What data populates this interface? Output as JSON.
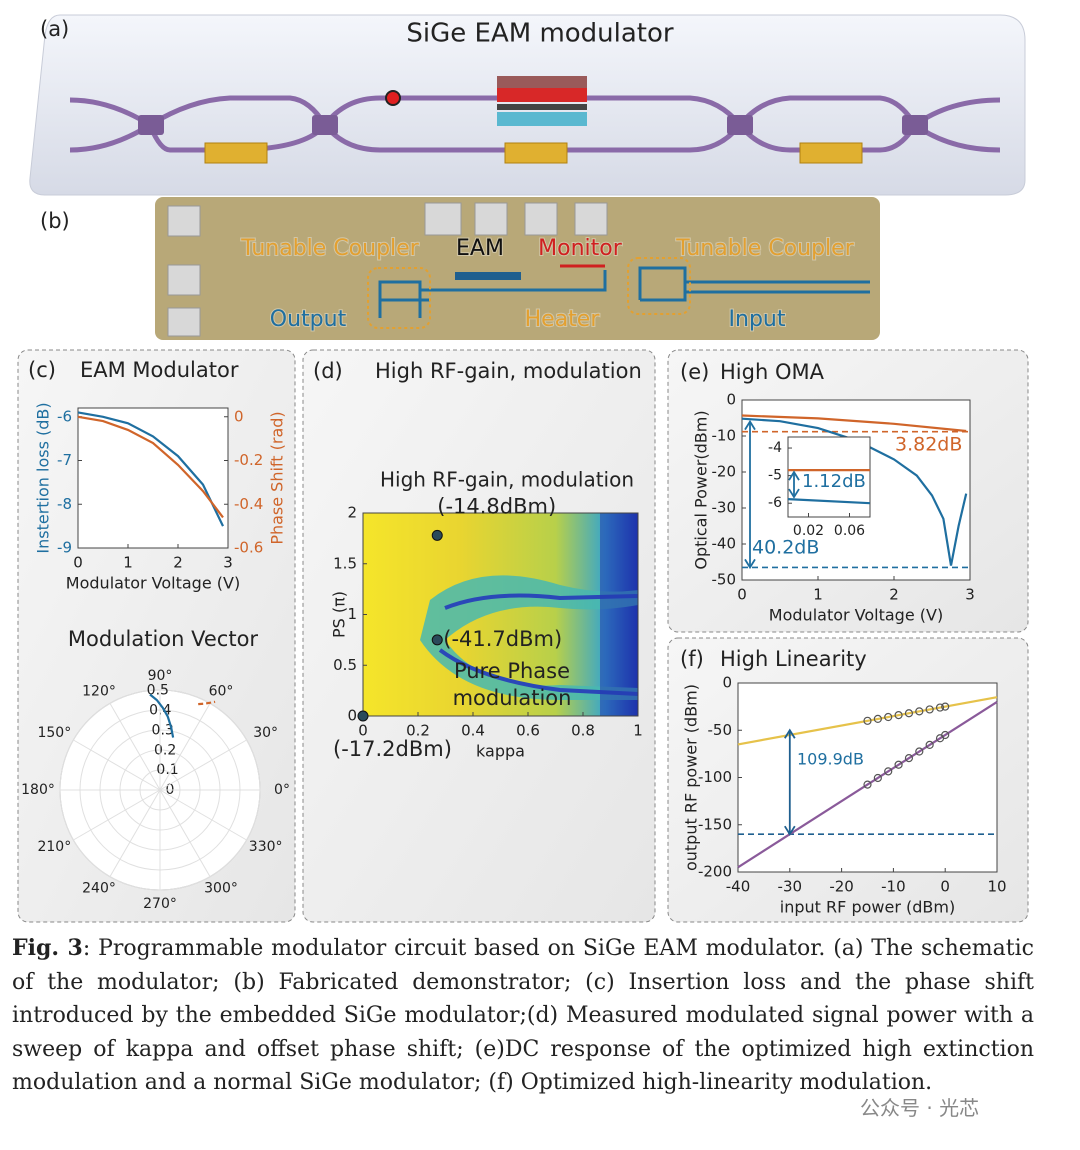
{
  "panel_a": {
    "label": "(a)",
    "title": "SiGe EAM modulator"
  },
  "panel_b": {
    "label": "(b)",
    "labels": [
      "Tunable Coupler",
      "EAM",
      "Monitor",
      "Tunable Coupler",
      "Output",
      "Heater",
      "Input"
    ]
  },
  "chart_data": [
    {
      "type": "line",
      "label": "(c)",
      "title": "EAM Modulator",
      "xlabel": "Modulator Voltage (V)",
      "ylabel": "Instertion loss (dB)",
      "y2label": "Phase Shift (rad)",
      "ycolor": "#1f6fa0",
      "y2color": "#d0652a",
      "x": [
        0,
        0.5,
        1,
        1.5,
        2,
        2.5,
        2.9
      ],
      "xlim": [
        0,
        3
      ],
      "xticks": [
        0,
        1,
        2,
        3
      ],
      "ylim": [
        -9,
        -5.8
      ],
      "yticks": [
        -9,
        -8,
        -7,
        -6
      ],
      "y2lim": [
        -0.6,
        0.04
      ],
      "y2ticks": [
        -0.6,
        -0.4,
        -0.2,
        0
      ],
      "series": [
        {
          "color": "#1f6fa0",
          "values": [
            -5.9,
            -6.0,
            -6.15,
            -6.45,
            -6.9,
            -7.55,
            -8.5
          ]
        },
        {
          "color": "#d0652a",
          "axis": "y2",
          "values": [
            0,
            -0.02,
            -0.06,
            -0.12,
            -0.22,
            -0.34,
            -0.46
          ]
        }
      ]
    },
    {
      "type": "polar",
      "title": "Modulation Vector",
      "rlim": [
        0,
        0.5
      ],
      "rticks": [
        0,
        0.1,
        0.2,
        0.3,
        0.4,
        0.5
      ],
      "thetaticks": [
        {
          "value": 0,
          "label": "0°"
        },
        {
          "value": 30,
          "label": "30°"
        },
        {
          "value": 60,
          "label": "60°"
        },
        {
          "value": 90,
          "label": "90°"
        },
        {
          "value": 120,
          "label": "120°"
        },
        {
          "value": 150,
          "label": "150°"
        },
        {
          "value": 180,
          "label": "180°"
        },
        {
          "value": 210,
          "label": "210°"
        },
        {
          "value": 240,
          "label": "240°"
        },
        {
          "value": 270,
          "label": "270°"
        },
        {
          "value": 300,
          "label": "300°"
        },
        {
          "value": 330,
          "label": "330°"
        }
      ],
      "series": [
        {
          "color": "#1f6fa0",
          "theta": [
            96,
            92,
            88,
            84,
            80,
            76
          ],
          "r": [
            0.48,
            0.45,
            0.41,
            0.37,
            0.32,
            0.27
          ]
        },
        {
          "color": "#d0652a",
          "dash": true,
          "theta": [
            66,
            62,
            58
          ],
          "r": [
            0.47,
            0.49,
            0.52
          ]
        }
      ]
    },
    {
      "type": "scatter",
      "label": "(d)",
      "title": "High RF-gain, modulation",
      "xlabel": "kappa",
      "ylabel": "PS (π)",
      "xlim": [
        0,
        1
      ],
      "xticks": [
        0,
        0.2,
        0.4,
        0.6,
        0.8,
        1
      ],
      "ylim": [
        0,
        2
      ],
      "yticks": [
        0,
        0.5,
        1,
        1.5,
        2
      ],
      "x": [
        0.27,
        0.27,
        0
      ],
      "values": [
        1.78,
        0.75,
        0
      ],
      "point_labels": [
        "(-14.8dBm)",
        "(-41.7dBm)",
        "(-17.2dBm)"
      ],
      "annotation": [
        "Pure Phase",
        "modulation"
      ],
      "color": "#2a4a5a"
    },
    {
      "type": "line",
      "label": "(e)",
      "title": "High OMA",
      "xlabel": "Modulator Voltage (V)",
      "ylabel": "Optical Power(dBm)",
      "xlim": [
        0,
        3
      ],
      "xticks": [
        0,
        1,
        2,
        3
      ],
      "ylim": [
        -50,
        0
      ],
      "yticks": [
        -50,
        -40,
        -30,
        -20,
        -10,
        0
      ],
      "series": [
        {
          "color": "#1f6fa0",
          "x": [
            0,
            0.5,
            1,
            1.5,
            2,
            2.3,
            2.5,
            2.65,
            2.75,
            2.85,
            2.95
          ],
          "values": [
            -5.2,
            -5.9,
            -7.8,
            -11.2,
            -16.5,
            -21,
            -26.5,
            -33,
            -46,
            -35,
            -26
          ]
        },
        {
          "color": "#d0652a",
          "x": [
            0,
            1,
            2,
            2.95
          ],
          "values": [
            -4.3,
            -5.1,
            -6.6,
            -8.6
          ]
        }
      ],
      "hlines": [
        {
          "value": -8.8,
          "color": "#d0652a"
        },
        {
          "value": -46.5,
          "color": "#1f6fa0"
        }
      ],
      "annotations": [
        "3.82dB",
        "40.2dB"
      ]
    },
    {
      "type": "line",
      "xlim": [
        0,
        0.08
      ],
      "xticks": [
        0.02,
        0.06
      ],
      "ylim": [
        -6.5,
        -3.6
      ],
      "yticks": [
        -6,
        -5,
        -4
      ],
      "series": [
        {
          "color": "#d0652a",
          "x": [
            0,
            0.08
          ],
          "values": [
            -4.8,
            -4.8
          ]
        },
        {
          "color": "#1f6fa0",
          "x": [
            0,
            0.08
          ],
          "values": [
            -5.85,
            -6.0
          ]
        }
      ],
      "annotations": [
        "1.12dB"
      ]
    },
    {
      "type": "line",
      "label": "(f)",
      "title": "High Linearity",
      "xlabel": "input RF power (dBm)",
      "ylabel": "output RF power (dBm)",
      "xlim": [
        -40,
        10
      ],
      "xticks": [
        -40,
        -30,
        -20,
        -10,
        0,
        10
      ],
      "ylim": [
        -200,
        0
      ],
      "yticks": [
        -200,
        -150,
        -100,
        -50,
        0
      ],
      "series": [
        {
          "color": "#e6c24a",
          "x": [
            -40,
            10
          ],
          "values": [
            -65,
            -15
          ]
        },
        {
          "color": "#8a5a9a",
          "x": [
            -40,
            10
          ],
          "values": [
            -195,
            -20
          ]
        },
        {
          "color": "#555555",
          "marker": true,
          "x": [
            -15,
            -13,
            -11,
            -9,
            -7,
            -5,
            -3,
            -1,
            0
          ],
          "values": [
            -40,
            -38,
            -36,
            -34,
            -32,
            -30,
            -28,
            -26,
            -25
          ]
        },
        {
          "color": "#555555",
          "marker": true,
          "x": [
            -15,
            -13,
            -11,
            -9,
            -7,
            -5,
            -3,
            -1,
            0
          ],
          "values": [
            -107.5,
            -100.5,
            -93.5,
            -86.5,
            -79.5,
            -72.5,
            -65.5,
            -58.5,
            -55
          ]
        }
      ],
      "hlines": [
        {
          "value": -160,
          "color": "#1f5f8f"
        }
      ],
      "annotations": [
        "109.9dB"
      ]
    }
  ],
  "caption": {
    "label": "Fig. 3",
    "text": ": Programmable modulator circuit based on SiGe EAM modulator. (a) The schematic of the modulator; (b) Fabricated demonstrator; (c) Insertion loss and the phase shift introduced by the embedded SiGe modulator;(d) Measured modulated signal power with a sweep of kappa and offset phase shift; (e)DC response of the optimized high extinction modulation and a normal SiGe modulator; (f) Optimized high-linearity modulation."
  },
  "watermark": "公众号 · 光芯"
}
